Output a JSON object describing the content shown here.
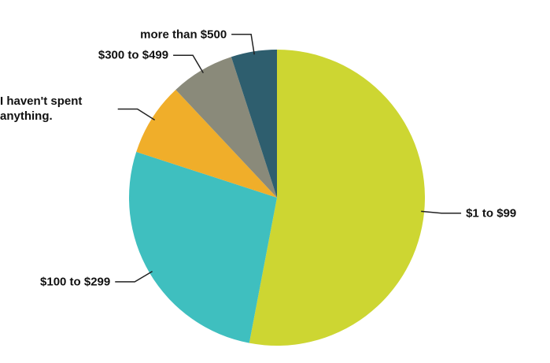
{
  "chart_data": {
    "type": "pie",
    "categories": [
      "$1 to $99",
      "$100 to $299",
      "I haven't spent anything.",
      "$300 to $499",
      "more than $500"
    ],
    "values": [
      53,
      27,
      8,
      7,
      5
    ],
    "colors": [
      "#cdd632",
      "#3fbfbf",
      "#f0ae2a",
      "#8a8a7a",
      "#2e5e6e"
    ]
  }
}
